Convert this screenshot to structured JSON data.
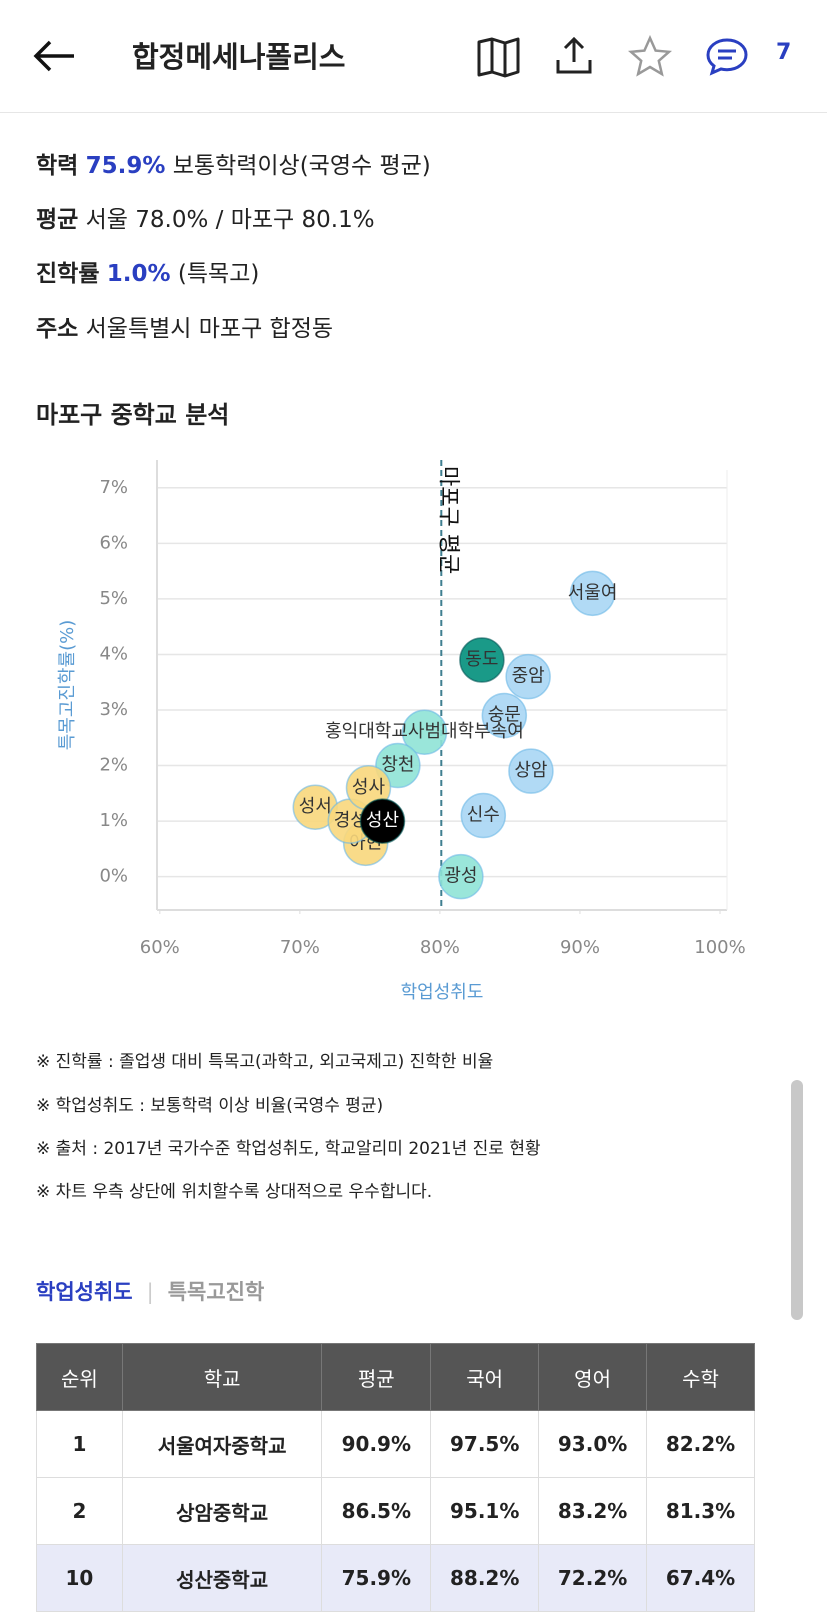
{
  "header": {
    "title": "합정메세나폴리스",
    "comment_count": "7"
  },
  "info": [
    {
      "label": "학력",
      "value": "75.9%",
      "text": "보통학력이상(국영수 평균)"
    },
    {
      "label": "평균",
      "text": "서울 78.0% / 마포구 80.1%"
    },
    {
      "label": "진학률",
      "value": "1.0%",
      "text": "(특목고)"
    },
    {
      "label": "주소",
      "text": "서울특별시 마포구 합정동"
    }
  ],
  "section_title": "마포구 중학교 분석",
  "chart_data": {
    "type": "scatter",
    "xlabel": "학업성취도",
    "ylabel": "특목고진학률(%)",
    "labels": [
      "서울여",
      "중암",
      "숭문",
      "동도",
      "홍익대학교사범대학부속여",
      "창천",
      "상암",
      "신수",
      "광성",
      "성서",
      "아현",
      "경성",
      "성사",
      "성산"
    ],
    "x": [
      90.9,
      86.3,
      84.6,
      83.0,
      78.9,
      77.0,
      86.5,
      83.1,
      81.5,
      71.1,
      74.7,
      73.6,
      74.9,
      75.9
    ],
    "values": [
      5.1,
      3.6,
      2.9,
      3.9,
      2.6,
      2.0,
      1.9,
      1.1,
      0.0,
      1.25,
      0.6,
      1.0,
      1.6,
      1.0
    ],
    "colors": [
      "#a8d6f4",
      "#a8d6f4",
      "#a8d6f4",
      "#1a9a88",
      "#8fe3d6",
      "#8fe3d6",
      "#a8d6f4",
      "#a8d6f4",
      "#8fe3d6",
      "#f8d77c",
      "#f8d77c",
      "#f8d77c",
      "#f8d77c",
      "#000000"
    ],
    "xlim": [
      59.8,
      100.5
    ],
    "ylim": [
      -0.6,
      7.5
    ],
    "xticks": [
      {
        "value": 60,
        "label": "60%"
      },
      {
        "value": 70,
        "label": "70%"
      },
      {
        "value": 80,
        "label": "80%"
      },
      {
        "value": 90,
        "label": "90%"
      },
      {
        "value": 100,
        "label": "100%"
      }
    ],
    "yticks": [
      {
        "value": 0,
        "label": "0%"
      },
      {
        "value": 1,
        "label": "1%"
      },
      {
        "value": 2,
        "label": "2%"
      },
      {
        "value": 3,
        "label": "3%"
      },
      {
        "value": 4,
        "label": "4%"
      },
      {
        "value": 5,
        "label": "5%"
      },
      {
        "value": 6,
        "label": "6%"
      },
      {
        "value": 7,
        "label": "7%"
      }
    ],
    "grid": true,
    "reference_line": {
      "x": 80.1,
      "label": "마포구 평균"
    }
  },
  "notes": [
    "※ 진학률 : 졸업생 대비 특목고(과학고, 외고국제고) 진학한 비율",
    "※ 학업성취도 : 보통학력 이상 비율(국영수 평균)",
    "※ 출처 : 2017년 국가수준 학업성취도, 학교알리미 2021년 진로 현황",
    "※ 차트 우측 상단에 위치할수록 상대적으로 우수합니다."
  ],
  "tabs": [
    "학업성취도",
    "특목고진학"
  ],
  "table": {
    "columns": [
      "순위",
      "학교",
      "평균",
      "국어",
      "영어",
      "수학"
    ],
    "rows": [
      [
        "1",
        "서울여자중학교",
        "90.9%",
        "97.5%",
        "93.0%",
        "82.2%"
      ],
      [
        "2",
        "상암중학교",
        "86.5%",
        "95.1%",
        "83.2%",
        "81.3%"
      ],
      [
        "10",
        "성산중학교",
        "75.9%",
        "88.2%",
        "72.2%",
        "67.4%"
      ]
    ]
  }
}
